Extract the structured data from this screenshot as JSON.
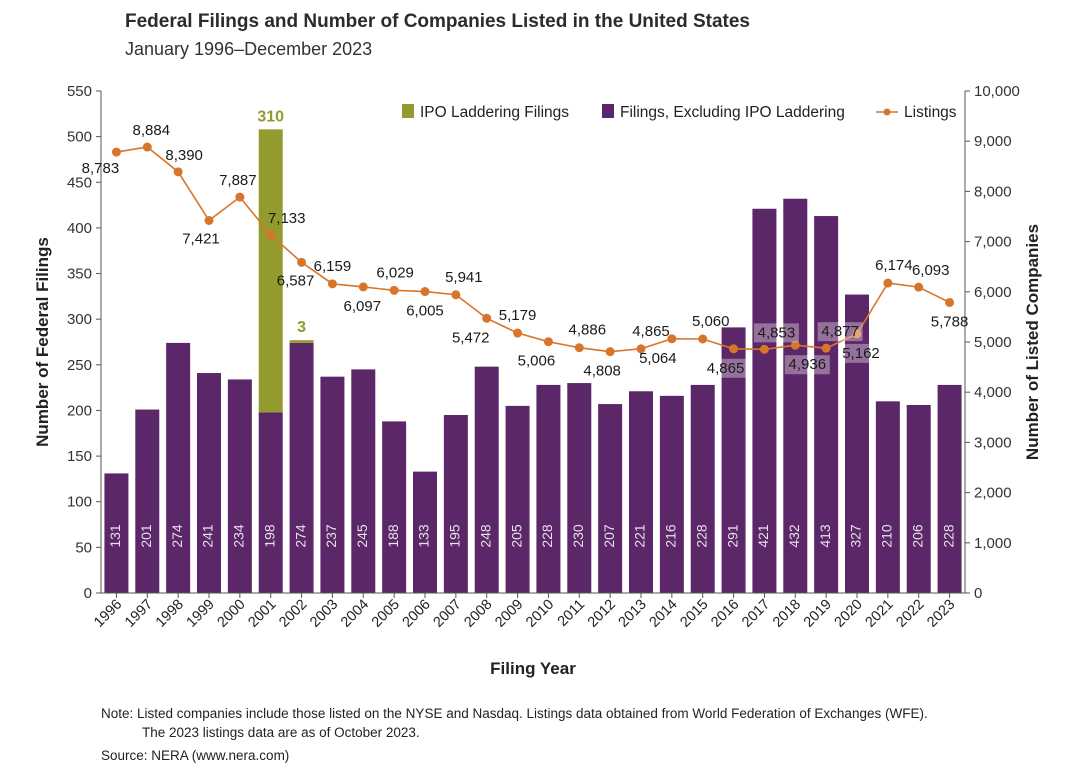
{
  "colors": {
    "filings": "#5b2768",
    "ipo_laddering": "#939a2e",
    "listings": "#d9752b",
    "bar_label": "#e8e0ea",
    "ipo_label": "#939a2e"
  },
  "footer": {
    "note_line1": "Note: Listed companies include those listed on the NYSE and Nasdaq. Listings data obtained from World Federation of Exchanges (WFE).",
    "note_line2": "The 2023 listings data are as of October 2023.",
    "source": "Source: NERA (www.nera.com)"
  },
  "chart_data": {
    "type": "bar",
    "title": "Federal Filings and Number of Companies Listed in the United States",
    "subtitle": "January 1996–December 2023",
    "xlabel": "Filing Year",
    "ylabel": "Number of Federal Filings",
    "y2label": "Number of Listed Companies",
    "ylim": [
      0,
      550
    ],
    "y_ticks": [
      0,
      50,
      100,
      150,
      200,
      250,
      300,
      350,
      400,
      450,
      500,
      550
    ],
    "y2lim": [
      0,
      10000
    ],
    "y2_ticks": [
      "0",
      "1,000",
      "2,000",
      "3,000",
      "4,000",
      "5,000",
      "6,000",
      "7,000",
      "8,000",
      "9,000",
      "10,000"
    ],
    "categories": [
      "1996",
      "1997",
      "1998",
      "1999",
      "2000",
      "2001",
      "2002",
      "2003",
      "2004",
      "2005",
      "2006",
      "2007",
      "2008",
      "2009",
      "2010",
      "2011",
      "2012",
      "2013",
      "2014",
      "2015",
      "2016",
      "2017",
      "2018",
      "2019",
      "2020",
      "2021",
      "2022",
      "2023"
    ],
    "legend_position": "top-right",
    "grid": false,
    "series": [
      {
        "name": "IPO Laddering Filings",
        "kind": "bar-stacked",
        "values": [
          0,
          0,
          0,
          0,
          0,
          310,
          3,
          0,
          0,
          0,
          0,
          0,
          0,
          0,
          0,
          0,
          0,
          0,
          0,
          0,
          0,
          0,
          0,
          0,
          0,
          0,
          0,
          0
        ]
      },
      {
        "name": "Filings, Excluding IPO Laddering",
        "kind": "bar-stacked",
        "values": [
          131,
          201,
          274,
          241,
          234,
          198,
          274,
          237,
          245,
          188,
          133,
          195,
          248,
          205,
          228,
          230,
          207,
          221,
          216,
          228,
          291,
          421,
          432,
          413,
          327,
          210,
          206,
          228
        ]
      },
      {
        "name": "Listings",
        "kind": "line",
        "axis": "right",
        "values": [
          8783,
          8884,
          8390,
          7421,
          7887,
          7133,
          6587,
          6159,
          6097,
          6029,
          6005,
          5941,
          5472,
          5179,
          5006,
          4886,
          4808,
          4865,
          5064,
          5060,
          4865,
          4853,
          4936,
          4877,
          5162,
          6174,
          6093,
          5788
        ],
        "labels": [
          "8,783",
          "8,884",
          "8,390",
          "7,421",
          "7,887",
          "7,133",
          "6,587",
          "6,159",
          "6,097",
          "6,029",
          "6,005",
          "5,941",
          "5,472",
          "5,179",
          "5,006",
          "4,886",
          "4,808",
          "4,865",
          "5,064",
          "5,060",
          "4,865",
          "4,853",
          "4,936",
          "4,877",
          "5,162",
          "6,174",
          "6,093",
          "5,788"
        ]
      }
    ]
  }
}
